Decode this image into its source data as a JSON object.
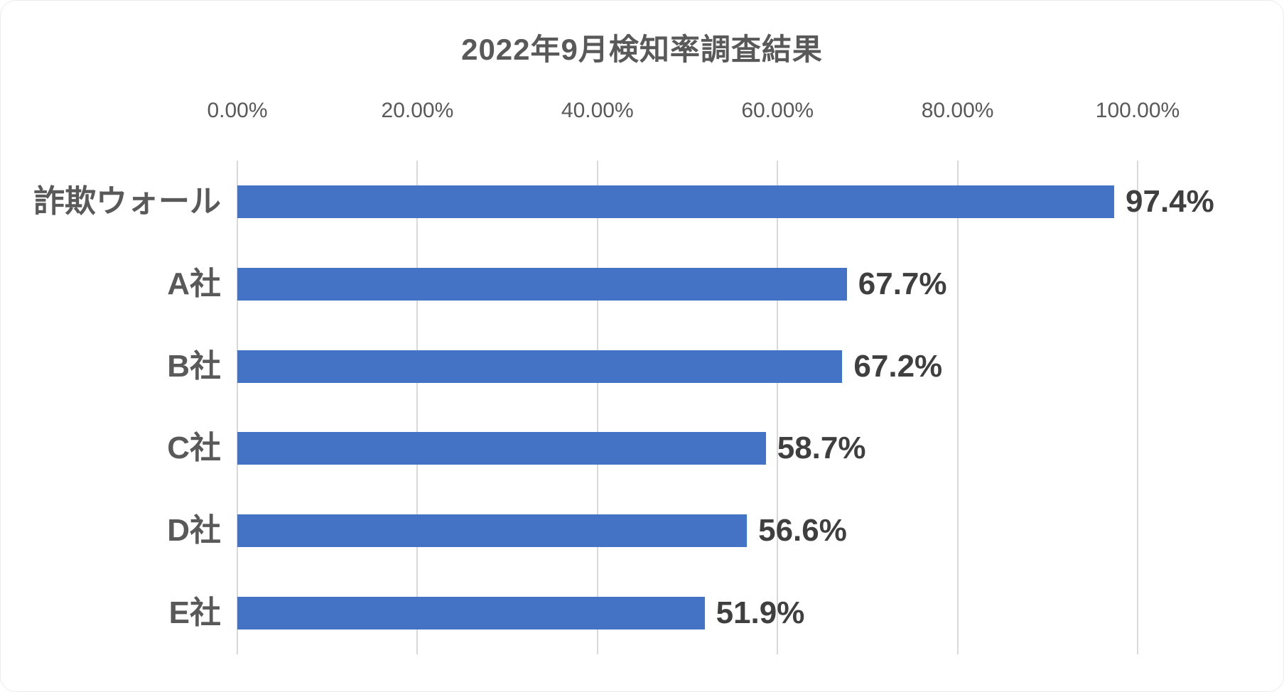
{
  "title": "2022年9月検知率調査結果",
  "chart_data": {
    "type": "bar",
    "orientation": "horizontal",
    "title": "2022年9月検知率調査結果",
    "categories": [
      "詐欺ウォール",
      "A社",
      "B社",
      "C社",
      "D社",
      "E社"
    ],
    "values": [
      97.4,
      67.7,
      67.2,
      58.7,
      56.6,
      51.9
    ],
    "value_labels": [
      "97.4%",
      "67.7%",
      "67.2%",
      "58.7%",
      "56.6%",
      "51.9%"
    ],
    "x_axis": {
      "position": "top",
      "min": 0,
      "max": 100,
      "tick_values": [
        0,
        20,
        40,
        60,
        80,
        100
      ],
      "tick_labels": [
        "0.00%",
        "20.00%",
        "40.00%",
        "60.00%",
        "80.00%",
        "100.00%"
      ]
    },
    "grid": "vertical-only",
    "legend": "none",
    "colors": {
      "bar": "#4472C4",
      "gridline": "#D9D9D9",
      "axis_line": "#D9D9D9",
      "title_text": "#595959",
      "tick_text": "#595959",
      "category_text": "#595959",
      "value_text": "#3F3F3F",
      "background": "#FFFFFF"
    }
  }
}
